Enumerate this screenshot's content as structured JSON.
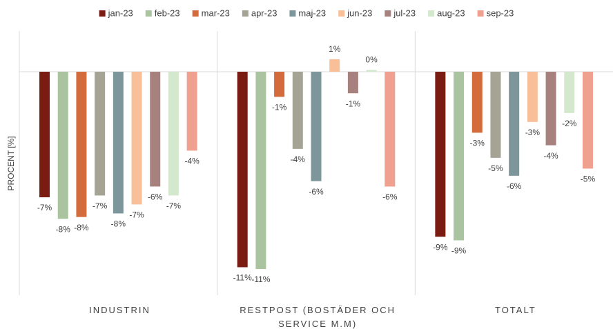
{
  "chart_data": {
    "type": "bar",
    "ylabel": "PROCENT [%]",
    "categories": [
      "INDUSTRIN",
      "RESTPOST (BOSTÄDER OCH SERVICE M.M)",
      "TOTALT"
    ],
    "ylim": [
      -12.46,
      2.27
    ],
    "series": [
      {
        "name": "jan-23",
        "color": "#7b1c13",
        "values": [
          -7.0,
          -10.9,
          -9.2
        ],
        "value_labels": [
          "-7%",
          "-11%",
          "-9%"
        ]
      },
      {
        "name": "feb-23",
        "color": "#a9c49f",
        "values": [
          -8.2,
          -11.0,
          -9.4
        ],
        "value_labels": [
          "-8%",
          "-11%",
          "-9%"
        ]
      },
      {
        "name": "mar-23",
        "color": "#d46b3c",
        "values": [
          -8.1,
          -1.4,
          -3.4
        ],
        "value_labels": [
          "-8%",
          "-1%",
          "-3%"
        ]
      },
      {
        "name": "apr-23",
        "color": "#a5a394",
        "values": [
          -6.9,
          -4.3,
          -4.8
        ],
        "value_labels": [
          "-7%",
          "-4%",
          "-5%"
        ]
      },
      {
        "name": "maj-23",
        "color": "#7d969b",
        "values": [
          -7.9,
          -6.1,
          -5.8
        ],
        "value_labels": [
          "-8%",
          "-6%",
          "-6%"
        ]
      },
      {
        "name": "jun-23",
        "color": "#f8bf99",
        "values": [
          -7.4,
          0.7,
          -2.8
        ],
        "value_labels": [
          "-7%",
          "1%",
          "-3%"
        ]
      },
      {
        "name": "jul-23",
        "color": "#a7817e",
        "values": [
          -6.4,
          -1.2,
          -4.1
        ],
        "value_labels": [
          "-6%",
          "-1%",
          "-4%"
        ]
      },
      {
        "name": "aug-23",
        "color": "#d3e8cc",
        "values": [
          -6.9,
          0.1,
          -2.3
        ],
        "value_labels": [
          "-7%",
          "0%",
          "-2%"
        ]
      },
      {
        "name": "sep-23",
        "color": "#f0a08f",
        "values": [
          -4.4,
          -6.4,
          -5.4
        ],
        "value_labels": [
          "-4%",
          "-6%",
          "-5%"
        ]
      }
    ]
  }
}
